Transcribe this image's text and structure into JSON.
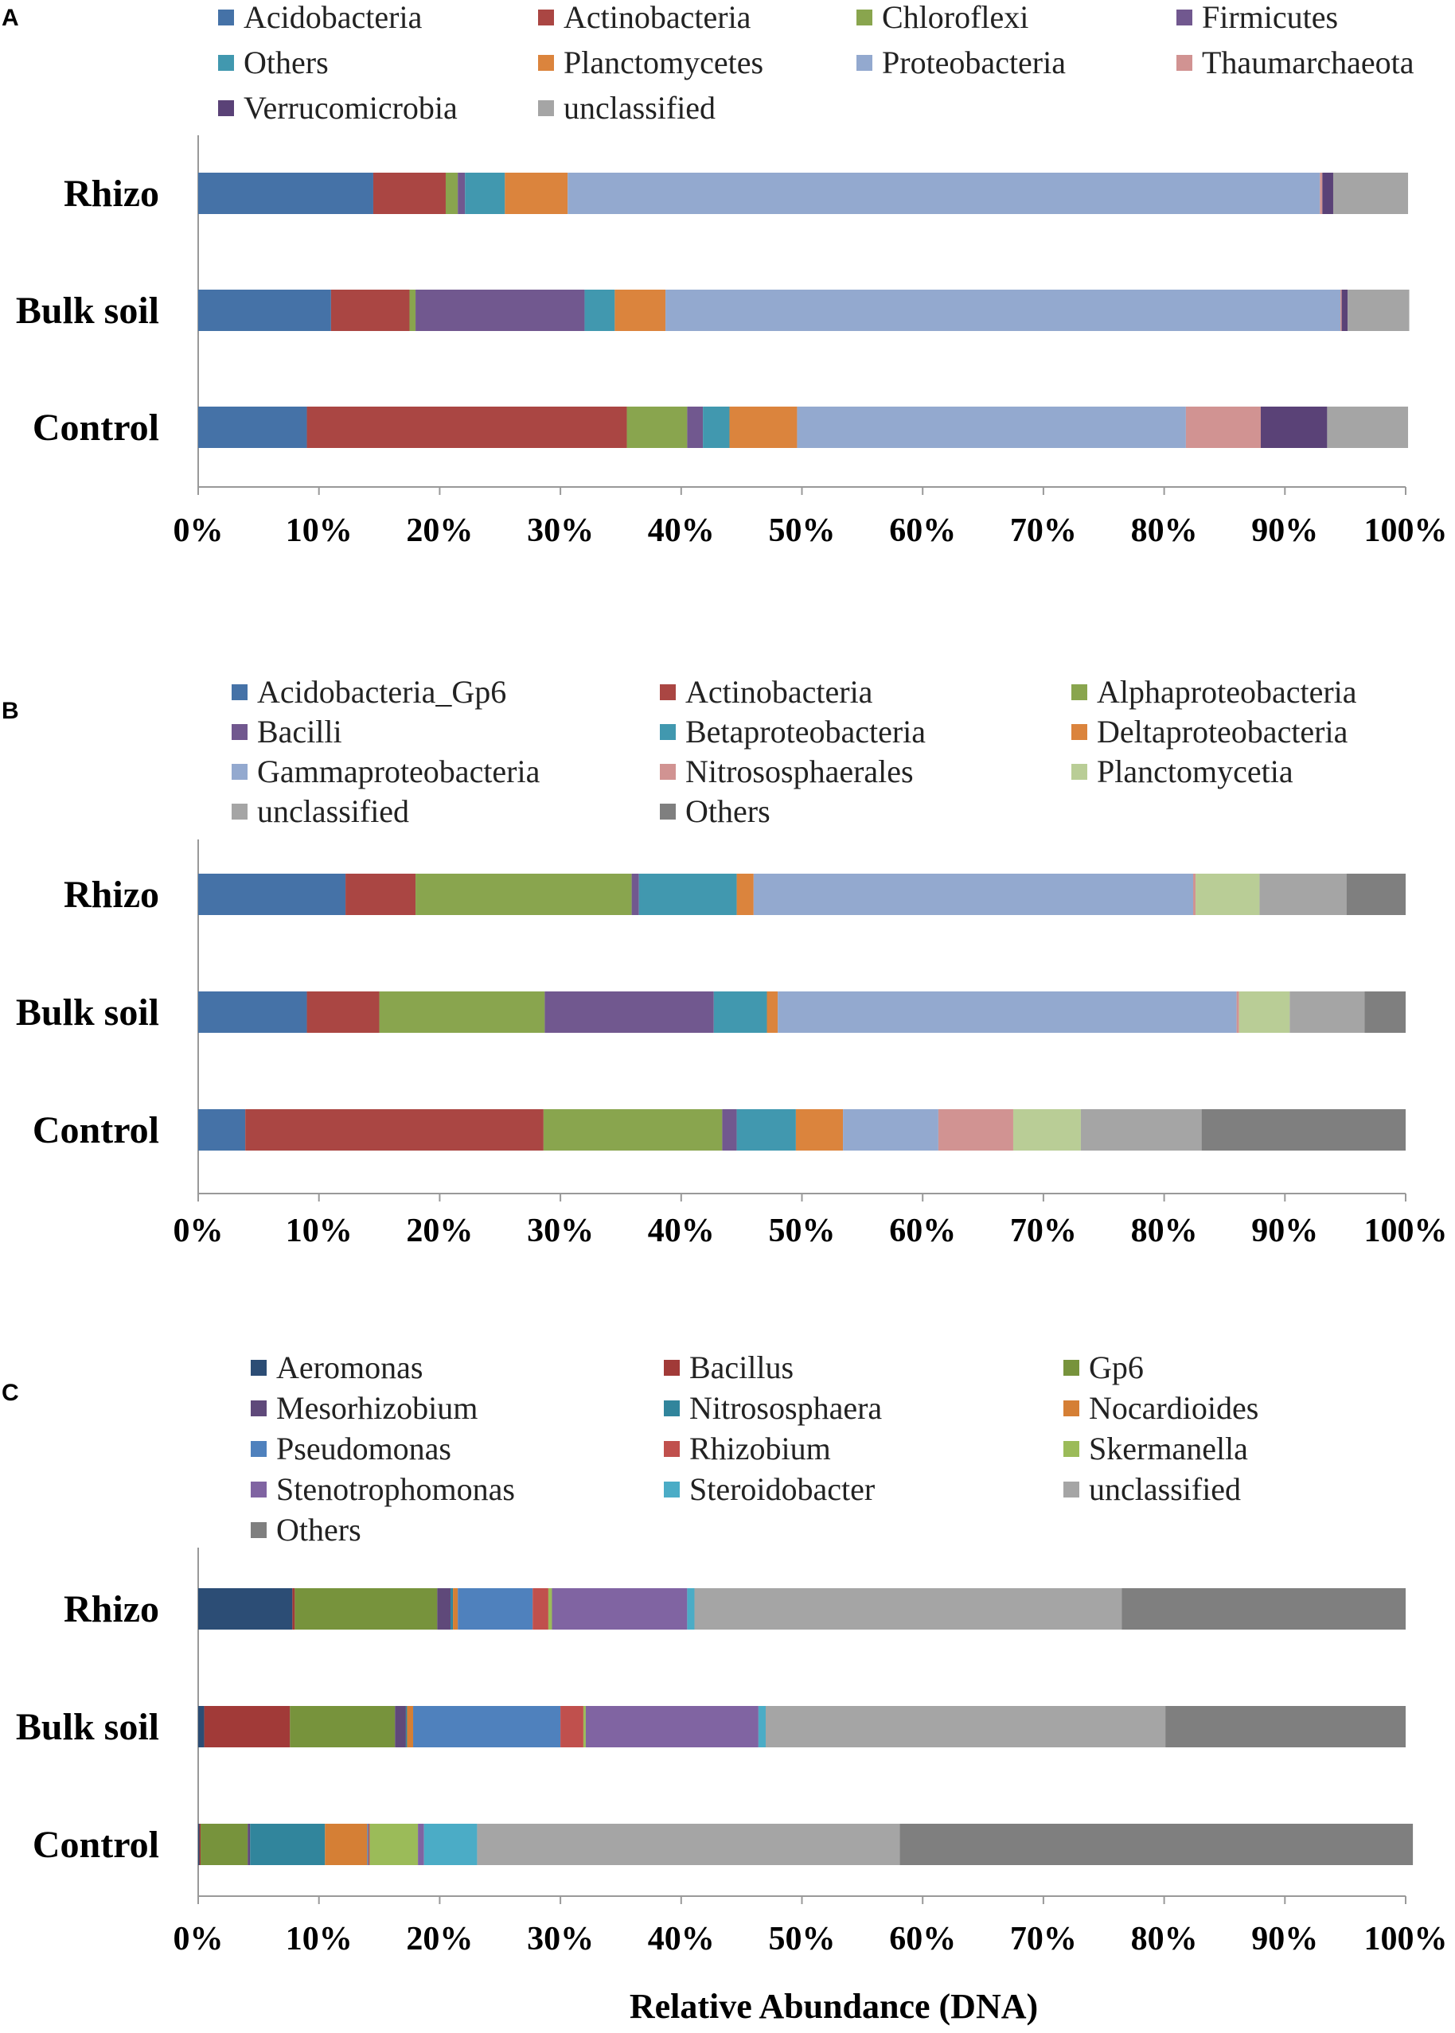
{
  "chart_data": [
    {
      "panel": "A",
      "type": "bar",
      "orientation": "horizontal",
      "stacked": true,
      "categories": [
        "Rhizo",
        "Bulk soil",
        "Control"
      ],
      "xlim": [
        0,
        100
      ],
      "xticks": [
        "0%",
        "10%",
        "20%",
        "30%",
        "40%",
        "50%",
        "60%",
        "70%",
        "80%",
        "90%",
        "100%"
      ],
      "xlabel": "",
      "legend_position": "top",
      "series": [
        {
          "name": "Acidobacteria",
          "color": "#4572A7",
          "values": [
            14.5,
            11.0,
            9.0
          ]
        },
        {
          "name": "Actinobacteria",
          "color": "#AA4643",
          "values": [
            6.0,
            6.5,
            26.5
          ]
        },
        {
          "name": "Chloroflexi",
          "color": "#89A54E",
          "values": [
            1.0,
            0.5,
            5.0
          ]
        },
        {
          "name": "Firmicutes",
          "color": "#71588F",
          "values": [
            0.6,
            14.0,
            1.3
          ]
        },
        {
          "name": "Others",
          "color": "#4198AF",
          "values": [
            3.3,
            2.5,
            2.2
          ]
        },
        {
          "name": "Planctomycetes",
          "color": "#DB843D",
          "values": [
            5.2,
            4.2,
            5.6
          ]
        },
        {
          "name": "Proteobacteria",
          "color": "#93A9CF",
          "values": [
            62.3,
            55.9,
            32.2
          ]
        },
        {
          "name": "Thaumarchaeota",
          "color": "#D19392",
          "values": [
            0.2,
            0.1,
            6.2
          ]
        },
        {
          "name": "Verrucomicrobia",
          "color": "#5A4277",
          "values": [
            0.9,
            0.5,
            5.5
          ]
        },
        {
          "name": "unclassified",
          "color": "#A5A5A5",
          "values": [
            6.2,
            5.1,
            6.7
          ]
        }
      ]
    },
    {
      "panel": "B",
      "type": "bar",
      "orientation": "horizontal",
      "stacked": true,
      "categories": [
        "Rhizo",
        "Bulk soil",
        "Control"
      ],
      "xlim": [
        0,
        100
      ],
      "xticks": [
        "0%",
        "10%",
        "20%",
        "30%",
        "40%",
        "50%",
        "60%",
        "70%",
        "80%",
        "90%",
        "100%"
      ],
      "xlabel": "",
      "legend_position": "top",
      "series": [
        {
          "name": "Acidobacteria_Gp6",
          "color": "#4572A7",
          "values": [
            12.2,
            9.0,
            3.9
          ]
        },
        {
          "name": "Actinobacteria",
          "color": "#AA4643",
          "values": [
            5.8,
            6.0,
            24.7
          ]
        },
        {
          "name": "Alphaproteobacteria",
          "color": "#89A54E",
          "values": [
            17.9,
            13.7,
            14.8
          ]
        },
        {
          "name": "Bacilli",
          "color": "#71588F",
          "values": [
            0.6,
            14.0,
            1.2
          ]
        },
        {
          "name": "Betaproteobacteria",
          "color": "#4198AF",
          "values": [
            8.1,
            4.4,
            4.9
          ]
        },
        {
          "name": "Deltaproteobacteria",
          "color": "#DB843D",
          "values": [
            1.4,
            0.9,
            3.9
          ]
        },
        {
          "name": "Gammaproteobacteria",
          "color": "#93A9CF",
          "values": [
            36.4,
            38.0,
            7.9
          ]
        },
        {
          "name": "Nitrososphaerales",
          "color": "#D19392",
          "values": [
            0.2,
            0.2,
            6.2
          ]
        },
        {
          "name": "Planctomycetia",
          "color": "#B9CD96",
          "values": [
            5.3,
            4.2,
            5.6
          ]
        },
        {
          "name": "unclassified",
          "color": "#A5A5A5",
          "values": [
            7.2,
            6.2,
            10.0
          ]
        },
        {
          "name": "Others",
          "color": "#7F7F7F",
          "values": [
            4.9,
            3.4,
            16.9
          ]
        }
      ]
    },
    {
      "panel": "C",
      "type": "bar",
      "orientation": "horizontal",
      "stacked": true,
      "categories": [
        "Rhizo",
        "Bulk soil",
        "Control"
      ],
      "xlim": [
        0,
        100
      ],
      "xticks": [
        "0%",
        "10%",
        "20%",
        "30%",
        "40%",
        "50%",
        "60%",
        "70%",
        "80%",
        "90%",
        "100%"
      ],
      "xlabel": "Relative Abundance (DNA)",
      "legend_position": "top",
      "series": [
        {
          "name": "Aeromonas",
          "color": "#2C4D75",
          "values": [
            7.8,
            0.5,
            0.1
          ]
        },
        {
          "name": "Bacillus",
          "color": "#A13A38",
          "values": [
            0.2,
            7.1,
            0.1
          ]
        },
        {
          "name": "Gp6",
          "color": "#77933C",
          "values": [
            11.8,
            8.7,
            3.9
          ]
        },
        {
          "name": "Mesorhizobium",
          "color": "#5F497A",
          "values": [
            1.1,
            0.9,
            0.2
          ]
        },
        {
          "name": "Nitrososphaera",
          "color": "#31859C",
          "values": [
            0.2,
            0.1,
            6.2
          ]
        },
        {
          "name": "Nocardioides",
          "color": "#D57F35",
          "values": [
            0.4,
            0.5,
            3.5
          ]
        },
        {
          "name": "Pseudomonas",
          "color": "#4F81BD",
          "values": [
            6.2,
            12.2,
            0.1
          ]
        },
        {
          "name": "Rhizobium",
          "color": "#C0504D",
          "values": [
            1.3,
            1.9,
            0.1
          ]
        },
        {
          "name": "Skermanella",
          "color": "#9BBB59",
          "values": [
            0.3,
            0.2,
            4.0
          ]
        },
        {
          "name": "Stenotrophomonas",
          "color": "#8064A2",
          "values": [
            11.2,
            14.3,
            0.5
          ]
        },
        {
          "name": "Steroidobacter",
          "color": "#4BACC6",
          "values": [
            0.6,
            0.6,
            4.4
          ]
        },
        {
          "name": "unclassified",
          "color": "#A5A5A5",
          "values": [
            35.4,
            33.1,
            35.0
          ]
        },
        {
          "name": "Others",
          "color": "#7F7F7F",
          "values": [
            23.5,
            19.9,
            42.5
          ]
        }
      ]
    }
  ]
}
